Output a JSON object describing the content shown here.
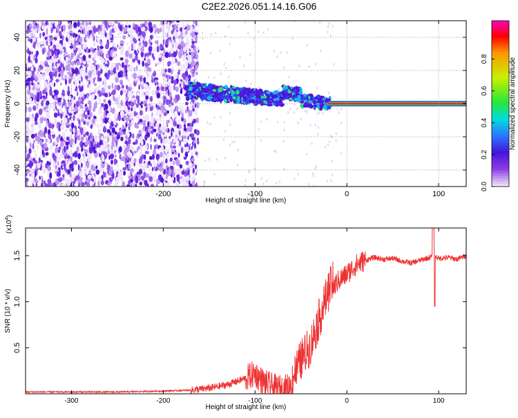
{
  "title": "C2E2.2026.051.14.16.G06",
  "chart_data": [
    {
      "type": "heatmap",
      "xlabel": "Height of straight line (km)",
      "ylabel": "Frequency (Hz)",
      "xlim": [
        -350,
        130
      ],
      "ylim": [
        -50,
        50
      ],
      "xticks": [
        -300,
        -200,
        -100,
        0,
        100
      ],
      "yticks": [
        -40,
        -20,
        0,
        20,
        40
      ],
      "grid": true,
      "features": [
        {
          "name": "noise-region",
          "x": [
            -350,
            -165
          ],
          "y": [
            -50,
            50
          ]
        },
        {
          "name": "track",
          "x": [
            -175,
            -20
          ],
          "y_center": [
            7,
            0
          ]
        },
        {
          "name": "carrier",
          "x": [
            -20,
            130
          ],
          "y": 0
        }
      ],
      "colorbar": {
        "label": "Normalized spectral amplitude",
        "range": [
          0,
          1
        ],
        "ticks": [
          "0.0",
          "0.2",
          "0.4",
          "0.6",
          "0.8"
        ]
      }
    },
    {
      "type": "line",
      "xlabel": "Height of straight line (km)",
      "ylabel": "SNR (10 * v/v)",
      "scale_note": "(x10",
      "scale_exp": "4",
      "xlim": [
        -350,
        130
      ],
      "ylim": [
        0,
        1.8
      ],
      "xticks": [
        -300,
        -200,
        -100,
        0,
        100
      ],
      "yticks": [
        "0.5",
        "1.0",
        "1.5"
      ],
      "series": [
        {
          "name": "SNR",
          "color": "#ee3333",
          "x": [
            -350,
            -250,
            -200,
            -170,
            -150,
            -130,
            -110,
            -100,
            -90,
            -80,
            -70,
            -60,
            -50,
            -40,
            -30,
            -25,
            -20,
            -15,
            -10,
            0,
            10,
            20,
            30,
            40,
            50,
            60,
            70,
            80,
            90,
            95,
            100,
            110,
            120,
            130
          ],
          "y": [
            0.02,
            0.02,
            0.03,
            0.04,
            0.06,
            0.1,
            0.17,
            0.22,
            0.12,
            0.07,
            0.05,
            0.1,
            0.3,
            0.45,
            0.75,
            0.9,
            1.05,
            1.15,
            1.22,
            1.3,
            1.4,
            1.45,
            1.48,
            1.46,
            1.47,
            1.44,
            1.42,
            1.45,
            1.48,
            1.5,
            1.47,
            1.48,
            1.46,
            1.5
          ]
        }
      ]
    }
  ]
}
